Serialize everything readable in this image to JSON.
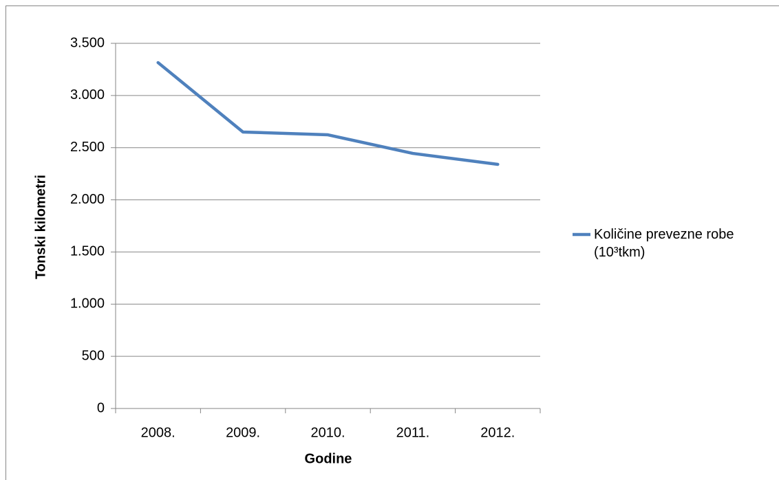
{
  "chart_data": {
    "type": "line",
    "x_label": "Godine",
    "y_label": "Tonski kilometri",
    "categories": [
      "2008.",
      "2009.",
      "2010.",
      "2011.",
      "2012."
    ],
    "series": [
      {
        "name": "Količine prevezne robe (10³tkm)",
        "color": "#4f81bd",
        "values": [
          3315,
          2650,
          2623,
          2445,
          2340
        ]
      }
    ],
    "ylim": [
      0,
      3500
    ],
    "yticks": [
      0,
      500,
      {
        "value": 1000,
        "label": "1.000"
      },
      {
        "value": 1500,
        "label": "1.500"
      },
      {
        "value": 2000,
        "label": "2.000"
      },
      {
        "value": 2500,
        "label": "2.500"
      },
      {
        "value": 3000,
        "label": "3.000"
      },
      {
        "value": 3500,
        "label": "3.500"
      }
    ],
    "grid": true,
    "legend": "right"
  }
}
